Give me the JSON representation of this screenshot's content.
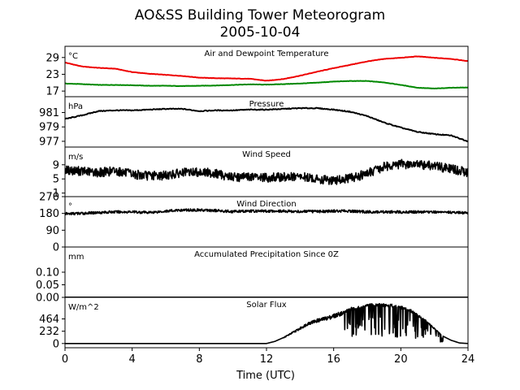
{
  "title": "AO&SS Building Tower Meteorogram",
  "subtitle": "2005-10-04",
  "xlabel": "Time (UTC)",
  "chart_data": {
    "type": "line",
    "title": "AO&SS Building Tower Meteorogram",
    "subtitle": "2005-10-04",
    "xlabel": "Time (UTC)",
    "xlim": [
      0,
      24
    ],
    "xticks": [
      0,
      4,
      8,
      12,
      16,
      20,
      24
    ],
    "xtick_labels": [
      "0",
      "4",
      "8",
      "12",
      "16",
      "20",
      "24"
    ],
    "grid": false,
    "panels": [
      {
        "name": "temperature",
        "title": "Air and Dewpoint Temperature",
        "unit": "°C",
        "ylim": [
          15,
          33
        ],
        "yticks": [
          17,
          23,
          29
        ],
        "ytick_labels": [
          "17",
          "23",
          "29"
        ],
        "series": [
          {
            "color": "#ee0000",
            "x": [
              0,
              1,
              2,
              3,
              4,
              5,
              6,
              7,
              8,
              9,
              10,
              11,
              12,
              13,
              14,
              15,
              16,
              17,
              18,
              19,
              20,
              21,
              22,
              23,
              24
            ],
            "values": [
              27.2,
              25.8,
              25.3,
              25,
              23.8,
              23.2,
              22.8,
              22.4,
              21.8,
              21.6,
              21.5,
              21.4,
              20.7,
              21.3,
              22.5,
              23.9,
              25.2,
              26.4,
              27.6,
              28.5,
              28.9,
              29.4,
              28.9,
              28.5,
              27.7
            ]
          },
          {
            "color": "#008800",
            "x": [
              0,
              1,
              2,
              3,
              4,
              5,
              6,
              7,
              8,
              9,
              10,
              11,
              12,
              13,
              14,
              15,
              16,
              17,
              18,
              19,
              20,
              21,
              22,
              23,
              24
            ],
            "values": [
              19.7,
              19.5,
              19.2,
              19.2,
              19.1,
              18.9,
              18.9,
              18.8,
              18.9,
              19,
              19.2,
              19.4,
              19.3,
              19.5,
              19.7,
              20,
              20.4,
              20.6,
              20.6,
              20.1,
              19.2,
              18.2,
              17.9,
              18.2,
              18.3
            ]
          }
        ]
      },
      {
        "name": "pressure",
        "title": "Pressure",
        "unit": "hPa",
        "ylim": [
          976.2,
          983.2
        ],
        "yticks": [
          977,
          979,
          981
        ],
        "ytick_labels": [
          "977",
          "979",
          "981"
        ],
        "series": [
          {
            "color": "#000000",
            "x": [
              0,
              1,
              2,
              3,
              4,
              5,
              6,
              7,
              8,
              9,
              10,
              11,
              12,
              13,
              14,
              15,
              16,
              17,
              18,
              19,
              20,
              21,
              22,
              23,
              24
            ],
            "values": [
              980.1,
              980.6,
              981.2,
              981.3,
              981.3,
              981.4,
              981.5,
              981.5,
              981.2,
              981.3,
              981.3,
              981.4,
              981.4,
              981.5,
              981.6,
              981.6,
              981.4,
              981.1,
              980.5,
              979.6,
              978.9,
              978.3,
              978,
              977.8,
              977
            ]
          }
        ]
      },
      {
        "name": "wind-speed",
        "title": "Wind Speed",
        "unit": "m/s",
        "ylim": [
          0,
          14
        ],
        "yticks": [
          1,
          5,
          9
        ],
        "ytick_labels": [
          "1",
          "5",
          "9"
        ],
        "noise": 1.3,
        "series": [
          {
            "color": "#000000",
            "x": [
              0,
              1,
              2,
              3,
              4,
              5,
              6,
              7,
              8,
              9,
              10,
              11,
              12,
              13,
              14,
              15,
              16,
              17,
              18,
              19,
              20,
              21,
              22,
              23,
              24
            ],
            "values": [
              7.5,
              7.2,
              6.8,
              7.3,
              6.3,
              5.9,
              6,
              6.7,
              7,
              6.5,
              5.5,
              5.6,
              5.3,
              5.5,
              5.6,
              5,
              4.5,
              5.2,
              6.5,
              8.5,
              9.2,
              9,
              8.7,
              7.8,
              6.8
            ]
          }
        ]
      },
      {
        "name": "wind-direction",
        "title": "Wind Direction",
        "unit": "°",
        "ylim": [
          0,
          270
        ],
        "yticks": [
          0,
          90,
          180,
          270
        ],
        "ytick_labels": [
          "0",
          "90",
          "180",
          "270"
        ],
        "noise": 7,
        "series": [
          {
            "color": "#000000",
            "x": [
              0,
              1,
              2,
              3,
              4,
              5,
              6,
              7,
              8,
              9,
              10,
              11,
              12,
              13,
              14,
              15,
              16,
              17,
              18,
              19,
              20,
              21,
              22,
              23,
              24
            ],
            "values": [
              178,
              180,
              185,
              188,
              188,
              185,
              192,
              198,
              198,
              195,
              190,
              192,
              193,
              192,
              190,
              190,
              193,
              192,
              188,
              188,
              187,
              188,
              188,
              186,
              182
            ]
          }
        ]
      },
      {
        "name": "precipitation",
        "title": "Accumulated Precipitation Since 0Z",
        "unit": "mm",
        "ylim": [
          0,
          0.2
        ],
        "yticks": [
          0.0,
          0.05,
          0.1
        ],
        "ytick_labels": [
          "0.00",
          "0.05",
          "0.10"
        ],
        "series": [
          {
            "color": "#000000",
            "x": [
              0,
              24
            ],
            "values": [
              0,
              0
            ]
          }
        ]
      },
      {
        "name": "solar-flux",
        "title": "Solar Flux",
        "unit": "W/m^2",
        "ylim": [
          -80,
          870
        ],
        "yticks": [
          0,
          232,
          464
        ],
        "ytick_labels": [
          "0",
          "232",
          "464"
        ],
        "spiky_range": [
          16.5,
          22.5
        ],
        "series": [
          {
            "color": "#000000",
            "x": [
              0,
              12,
              12.5,
              13,
              13.5,
              14,
              14.5,
              15,
              15.5,
              16,
              16.5,
              17,
              17.5,
              18,
              18.5,
              19,
              19.5,
              20,
              20.5,
              21,
              21.5,
              22,
              22.5,
              23,
              23.5,
              24
            ],
            "values": [
              0,
              0,
              40,
              110,
              200,
              290,
              390,
              440,
              480,
              530,
              590,
              680,
              700,
              740,
              760,
              750,
              740,
              710,
              660,
              560,
              440,
              290,
              140,
              60,
              10,
              0
            ]
          }
        ]
      }
    ]
  }
}
